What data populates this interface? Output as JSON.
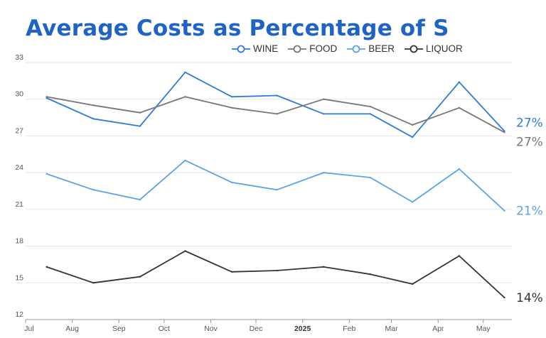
{
  "chart_data": {
    "type": "line",
    "title": "Average Costs as Percentage of S",
    "x": [
      "Jul",
      "Aug",
      "Sep",
      "Oct",
      "Nov",
      "Dec",
      "2025",
      "Feb",
      "Mar",
      "Apr",
      "May"
    ],
    "bold_ticks": [
      "2025"
    ],
    "ylim": [
      12,
      33
    ],
    "yticks": [
      12,
      15,
      18,
      21,
      24,
      27,
      30,
      33
    ],
    "grid": true,
    "legend_position": "top",
    "series": [
      {
        "name": "WINE",
        "color": "#2e7bd6",
        "x": [
          "2024-07-15",
          "2024-08-15",
          "2024-09-15",
          "2024-10-15",
          "2024-11-15",
          "2024-12-15",
          "2025-01-15",
          "2025-02-15",
          "2025-03-15",
          "2025-04-15",
          "2025-05-15"
        ],
        "values": [
          30.1,
          28.4,
          27.8,
          32.2,
          30.2,
          30.3,
          28.8,
          28.8,
          26.9,
          31.4,
          27.4
        ],
        "end_label": "27%"
      },
      {
        "name": "FOOD",
        "color": "#777777",
        "x": [
          "2024-07-15",
          "2024-08-15",
          "2024-09-15",
          "2024-10-15",
          "2024-11-15",
          "2024-12-15",
          "2025-01-15",
          "2025-02-15",
          "2025-03-15",
          "2025-04-15",
          "2025-05-15"
        ],
        "values": [
          30.2,
          29.5,
          28.9,
          30.2,
          29.3,
          28.8,
          30.0,
          29.4,
          27.9,
          29.3,
          27.3
        ],
        "end_label": "27%"
      },
      {
        "name": "BEER",
        "color": "#5aa3e6",
        "x": [
          "2024-07-15",
          "2024-08-15",
          "2024-09-15",
          "2024-10-15",
          "2024-11-15",
          "2024-12-15",
          "2025-01-15",
          "2025-02-15",
          "2025-03-15",
          "2025-04-15",
          "2025-05-15"
        ],
        "values": [
          23.9,
          22.6,
          21.8,
          25.0,
          23.2,
          22.6,
          24.0,
          23.6,
          21.6,
          24.3,
          20.9
        ],
        "end_label": "21%"
      },
      {
        "name": "LIQUOR",
        "color": "#333333",
        "x": [
          "2024-07-15",
          "2024-08-15",
          "2024-09-15",
          "2024-10-15",
          "2024-11-15",
          "2024-12-15",
          "2025-01-15",
          "2025-02-15",
          "2025-03-15",
          "2025-04-15",
          "2025-05-15"
        ],
        "values": [
          16.3,
          15.0,
          15.5,
          17.6,
          15.9,
          16.0,
          16.3,
          15.7,
          14.9,
          17.2,
          13.8
        ],
        "end_label": "14%"
      }
    ]
  }
}
